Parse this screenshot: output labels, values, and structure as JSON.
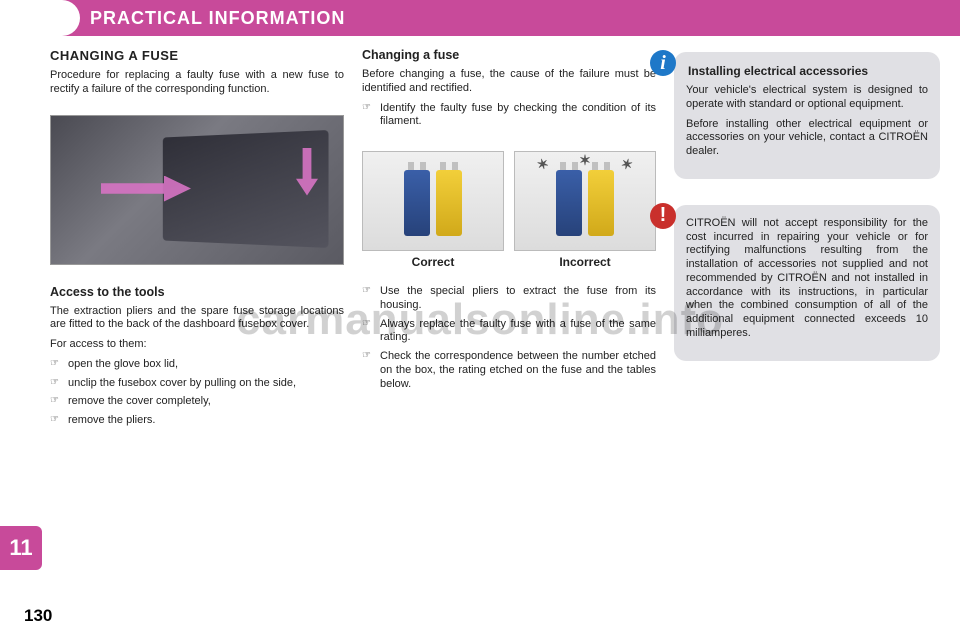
{
  "header": {
    "title": "PRACTICAL INFORMATION"
  },
  "section_tab": "11",
  "page_number": "130",
  "watermark": "carmanualsonline.info",
  "colors": {
    "brand_magenta": "#c84a9a",
    "info_blue": "#1e78c8",
    "warn_red": "#c9302c",
    "box_bg": "#e0e0e4",
    "page_bg": "#ffffff"
  },
  "left": {
    "title": "CHANGING A FUSE",
    "intro": "Procedure for replacing a faulty fuse with a new fuse to rectify a failure of the corresponding function.",
    "tools_title": "Access to the tools",
    "tools_intro": "The extraction pliers and the spare fuse storage locations are fitted to the back of the dashboard fusebox cover.",
    "tools_lead": "For access to them:",
    "tools_steps": [
      "open the glove box lid,",
      "unclip the fusebox cover by pulling on the side,",
      "remove the cover completely,",
      "remove the pliers."
    ]
  },
  "mid": {
    "title": "Changing a fuse",
    "intro": "Before changing a fuse, the cause of the failure must be identified and rectified.",
    "identify": "Identify the faulty fuse by checking the condition of its filament.",
    "caption_correct": "Correct",
    "caption_incorrect": "Incorrect",
    "steps": [
      "Use the special pliers to extract the fuse from its housing.",
      "Always replace the faulty fuse with a fuse of the same rating.",
      "Check the correspondence between the number etched on the box, the rating etched on the fuse and the tables below."
    ]
  },
  "right": {
    "info_title": "Installing electrical accessories",
    "info_p1": "Your vehicle's electrical system is designed to operate with standard or optional equipment.",
    "info_p2": "Before installing other electrical equipment or accessories on your vehicle, contact a CITROËN dealer.",
    "warn_p1": "CITROËN will not accept responsibility for the cost incurred in repairing your vehicle or for rectifying malfunctions resulting from the installation of accessories not supplied and not recommended by CITROËN and not installed in accordance with its instructions, in particular when the combined consumption of all of the additional equipment connected exceeds 10 milliamperes."
  }
}
